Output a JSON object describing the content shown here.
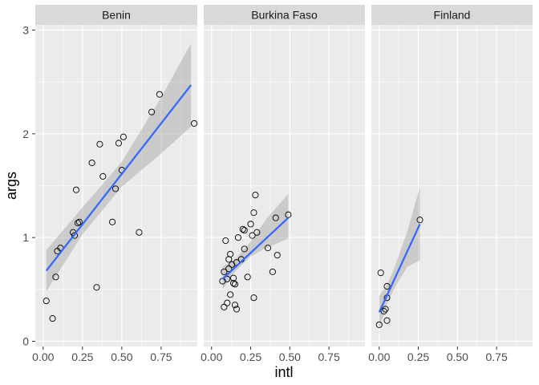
{
  "chart_data": {
    "type": "scatter",
    "xlabel": "intl",
    "ylabel": "args",
    "xlim": [
      -0.05,
      0.98
    ],
    "ylim": [
      -0.05,
      3.05
    ],
    "x_ticks": [
      0.0,
      0.25,
      0.5,
      0.75
    ],
    "x_tick_labels": [
      "0.00",
      "0.25",
      "0.50",
      "0.75"
    ],
    "y_ticks": [
      0,
      1,
      2,
      3
    ],
    "y_tick_labels": [
      "0",
      "1",
      "2",
      "3"
    ],
    "grid": true,
    "facets": [
      {
        "label": "Benin",
        "points": [
          [
            0.02,
            0.39
          ],
          [
            0.06,
            0.22
          ],
          [
            0.08,
            0.62
          ],
          [
            0.09,
            0.87
          ],
          [
            0.11,
            0.9
          ],
          [
            0.19,
            1.05
          ],
          [
            0.2,
            1.02
          ],
          [
            0.21,
            1.46
          ],
          [
            0.22,
            1.14
          ],
          [
            0.23,
            1.15
          ],
          [
            0.31,
            1.72
          ],
          [
            0.34,
            0.52
          ],
          [
            0.36,
            1.9
          ],
          [
            0.38,
            1.59
          ],
          [
            0.44,
            1.15
          ],
          [
            0.46,
            1.47
          ],
          [
            0.48,
            1.91
          ],
          [
            0.5,
            1.65
          ],
          [
            0.51,
            1.97
          ],
          [
            0.61,
            1.05
          ],
          [
            0.69,
            2.21
          ],
          [
            0.74,
            2.38
          ],
          [
            0.96,
            2.1
          ]
        ],
        "fit": {
          "x0": 0.02,
          "y0": 0.68,
          "x1": 0.94,
          "y1": 2.47
        },
        "band": [
          [
            0.02,
            0.48,
            0.88
          ],
          [
            0.25,
            1.03,
            1.29
          ],
          [
            0.5,
            1.49,
            1.73
          ],
          [
            0.75,
            1.81,
            2.35
          ],
          [
            0.94,
            2.07,
            2.87
          ]
        ]
      },
      {
        "label": "Burkina Faso",
        "points": [
          [
            0.07,
            0.58
          ],
          [
            0.08,
            0.33
          ],
          [
            0.08,
            0.67
          ],
          [
            0.09,
            0.97
          ],
          [
            0.1,
            0.37
          ],
          [
            0.1,
            0.6
          ],
          [
            0.11,
            0.7
          ],
          [
            0.11,
            0.79
          ],
          [
            0.12,
            0.84
          ],
          [
            0.12,
            0.45
          ],
          [
            0.13,
            0.74
          ],
          [
            0.14,
            0.56
          ],
          [
            0.14,
            0.61
          ],
          [
            0.15,
            0.55
          ],
          [
            0.15,
            0.35
          ],
          [
            0.16,
            0.31
          ],
          [
            0.16,
            0.76
          ],
          [
            0.17,
            1.0
          ],
          [
            0.19,
            0.79
          ],
          [
            0.2,
            1.08
          ],
          [
            0.21,
            1.07
          ],
          [
            0.21,
            0.89
          ],
          [
            0.23,
            0.62
          ],
          [
            0.25,
            1.13
          ],
          [
            0.26,
            1.02
          ],
          [
            0.27,
            0.42
          ],
          [
            0.27,
            1.24
          ],
          [
            0.28,
            1.41
          ],
          [
            0.29,
            1.05
          ],
          [
            0.36,
            0.9
          ],
          [
            0.39,
            0.67
          ],
          [
            0.41,
            1.19
          ],
          [
            0.42,
            0.83
          ],
          [
            0.49,
            1.22
          ]
        ],
        "fit": {
          "x0": 0.07,
          "y0": 0.6,
          "x1": 0.49,
          "y1": 1.19
        },
        "band": [
          [
            0.07,
            0.5,
            0.72
          ],
          [
            0.15,
            0.67,
            0.79
          ],
          [
            0.25,
            0.82,
            0.96
          ],
          [
            0.35,
            0.9,
            1.18
          ],
          [
            0.49,
            0.99,
            1.42
          ]
        ]
      },
      {
        "label": "Finland",
        "points": [
          [
            0.0,
            0.16
          ],
          [
            0.01,
            0.66
          ],
          [
            0.03,
            0.29
          ],
          [
            0.04,
            0.31
          ],
          [
            0.05,
            0.2
          ],
          [
            0.05,
            0.42
          ],
          [
            0.05,
            0.53
          ],
          [
            0.26,
            1.17
          ]
        ],
        "fit": {
          "x0": 0.0,
          "y0": 0.28,
          "x1": 0.26,
          "y1": 1.13
        },
        "band": [
          [
            0.0,
            0.12,
            0.44
          ],
          [
            0.05,
            0.36,
            0.54
          ],
          [
            0.1,
            0.52,
            0.72
          ],
          [
            0.18,
            0.72,
            1.06
          ],
          [
            0.26,
            0.78,
            1.49
          ]
        ]
      }
    ]
  },
  "colors": {
    "panel_background": "#ebebeb",
    "grid_major": "#ffffff",
    "strip_background": "#d9d9d9",
    "fit_line": "#3366ff",
    "ribbon": "#999999",
    "point_stroke": "#000000"
  }
}
